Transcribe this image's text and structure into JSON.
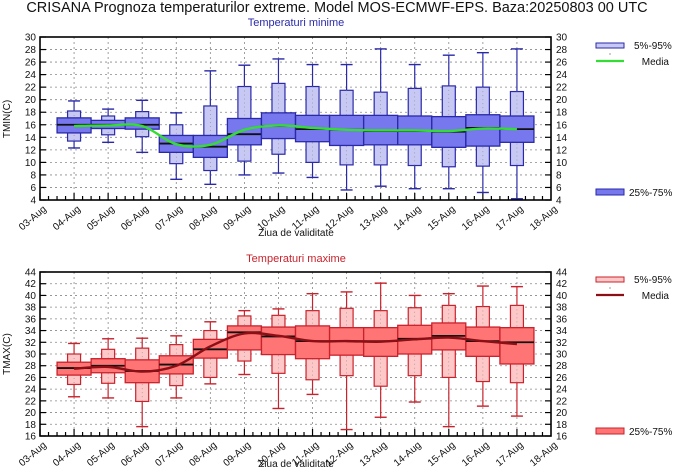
{
  "title": "CRISANA  Prognoza temperaturilor extreme.  Model MOS-ECMWF-EPS. Baza:20250803 00 UTC",
  "colors": {
    "min_inner": "#7777ee",
    "min_outer": "#c8c8f4",
    "min_stroke": "#2a2aa8",
    "min_mean": "#33dd33",
    "max_inner": "#ff7474",
    "max_outer": "#ffc8c8",
    "max_stroke": "#c8232c",
    "max_mean": "#8b0f14",
    "median": "#111111",
    "grid": "#888888"
  },
  "chart_data": [
    {
      "type": "boxplot",
      "title": "Temperaturi minime",
      "xlabel": "Ziua de validitate",
      "ylabel": "TMIN(C)",
      "ylim": [
        4,
        30
      ],
      "yticks": [
        4,
        6,
        8,
        10,
        12,
        14,
        16,
        18,
        20,
        22,
        24,
        26,
        28,
        30
      ],
      "grid": true,
      "xtick_labels": [
        "03-Aug",
        "04-Aug",
        "05-Aug",
        "06-Aug",
        "07-Aug",
        "08-Aug",
        "09-Aug",
        "10-Aug",
        "11-Aug",
        "12-Aug",
        "13-Aug",
        "14-Aug",
        "15-Aug",
        "16-Aug",
        "17-Aug",
        "18-Aug"
      ],
      "categories": [
        "04-Aug",
        "05-Aug",
        "06-Aug",
        "07-Aug",
        "08-Aug",
        "09-Aug",
        "10-Aug",
        "11-Aug",
        "12-Aug",
        "13-Aug",
        "14-Aug",
        "15-Aug",
        "16-Aug",
        "17-Aug"
      ],
      "whisker_min": [
        12.3,
        13.2,
        11.6,
        7.3,
        6.5,
        8.0,
        8.3,
        7.6,
        5.6,
        6.2,
        5.8,
        5.8,
        5.2,
        4.2
      ],
      "p5": [
        13.4,
        14.4,
        14.1,
        9.8,
        8.7,
        10.2,
        11.3,
        10.0,
        9.6,
        9.6,
        9.5,
        9.3,
        9.4,
        9.5
      ],
      "p25": [
        14.7,
        15.4,
        15.3,
        11.6,
        10.8,
        12.8,
        13.8,
        13.3,
        12.7,
        12.8,
        12.8,
        12.4,
        12.6,
        13.2
      ],
      "median": [
        16.0,
        16.0,
        16.0,
        13.0,
        12.5,
        14.5,
        15.8,
        15.3,
        15.2,
        15.0,
        15.0,
        14.9,
        15.5,
        15.3
      ],
      "p75": [
        17.1,
        16.7,
        17.1,
        14.3,
        14.3,
        17.0,
        17.9,
        17.5,
        17.5,
        17.5,
        17.4,
        17.3,
        17.6,
        17.4
      ],
      "p95": [
        18.2,
        17.4,
        18.1,
        16.0,
        19.0,
        22.1,
        22.6,
        22.1,
        21.5,
        21.2,
        21.8,
        22.2,
        22.0,
        21.3
      ],
      "whisker_max": [
        19.8,
        18.5,
        19.9,
        17.9,
        24.6,
        25.5,
        26.5,
        25.6,
        25.6,
        28.1,
        25.6,
        27.1,
        27.5,
        28.1
      ],
      "mean": [
        15.8,
        15.9,
        15.8,
        12.9,
        12.8,
        15.2,
        15.9,
        15.5,
        15.2,
        15.1,
        15.1,
        15.0,
        15.4,
        15.3
      ],
      "legend": {
        "outer": "5%-95%",
        "mean": "Media",
        "inner": "25%-75%",
        "position": "right"
      }
    },
    {
      "type": "boxplot",
      "title": "Temperaturi maxime",
      "xlabel": "Ziua de validitate",
      "ylabel": "TMAX(C)",
      "ylim": [
        16,
        44
      ],
      "yticks": [
        16,
        18,
        20,
        22,
        24,
        26,
        28,
        30,
        32,
        34,
        36,
        38,
        40,
        42,
        44
      ],
      "grid": true,
      "xtick_labels": [
        "03-Aug",
        "04-Aug",
        "05-Aug",
        "06-Aug",
        "07-Aug",
        "08-Aug",
        "09-Aug",
        "10-Aug",
        "11-Aug",
        "12-Aug",
        "13-Aug",
        "14-Aug",
        "15-Aug",
        "16-Aug",
        "17-Aug",
        "18-Aug"
      ],
      "categories": [
        "04-Aug",
        "05-Aug",
        "06-Aug",
        "07-Aug",
        "08-Aug",
        "09-Aug",
        "10-Aug",
        "11-Aug",
        "12-Aug",
        "13-Aug",
        "14-Aug",
        "15-Aug",
        "16-Aug",
        "17-Aug"
      ],
      "whisker_min": [
        22.7,
        22.5,
        17.6,
        22.5,
        24.9,
        26.5,
        20.7,
        23.1,
        17.1,
        19.2,
        21.8,
        17.6,
        21.1,
        19.4
      ],
      "p5": [
        24.8,
        25.0,
        21.9,
        24.6,
        26.0,
        28.8,
        26.7,
        25.6,
        26.3,
        24.5,
        26.3,
        26.0,
        25.3,
        25.1
      ],
      "p25": [
        26.4,
        26.8,
        25.1,
        26.6,
        29.3,
        30.7,
        29.9,
        29.2,
        29.8,
        29.6,
        30.0,
        30.7,
        29.6,
        28.3
      ],
      "median": [
        27.6,
        28.0,
        27.1,
        28.2,
        30.8,
        33.7,
        33.0,
        32.2,
        32.2,
        32.2,
        32.6,
        33.1,
        32.2,
        32.0
      ],
      "p75": [
        28.6,
        29.2,
        29.0,
        29.7,
        32.5,
        34.8,
        34.6,
        34.8,
        34.5,
        34.5,
        34.9,
        35.3,
        34.6,
        34.5
      ],
      "p95": [
        30.0,
        30.8,
        31.0,
        31.6,
        34.0,
        36.5,
        36.6,
        37.4,
        37.8,
        37.4,
        37.9,
        38.3,
        38.1,
        38.3
      ],
      "whisker_max": [
        31.8,
        32.6,
        32.7,
        33.1,
        35.5,
        37.4,
        37.7,
        40.3,
        40.6,
        42.1,
        40.0,
        40.3,
        41.6,
        41.5
      ],
      "mean": [
        27.5,
        27.8,
        27.0,
        28.0,
        31.3,
        33.5,
        33.1,
        32.2,
        32.2,
        32.1,
        32.5,
        32.8,
        32.2,
        31.7
      ],
      "legend": {
        "outer": "5%-95%",
        "mean": "Media",
        "inner": "25%-75%",
        "position": "right"
      }
    }
  ]
}
